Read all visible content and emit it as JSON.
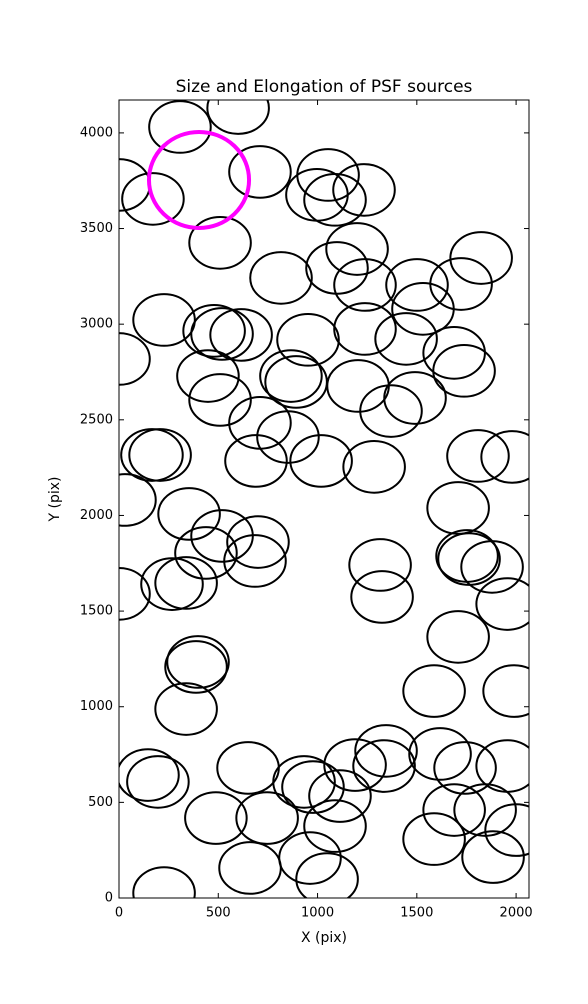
{
  "chart_data": {
    "type": "scatter",
    "title": "Size and Elongation of PSF sources",
    "x_label": "X (pix)",
    "y_label": "Y (pix)",
    "xlim": [
      0,
      2065
    ],
    "ylim": [
      0,
      4172
    ],
    "xticks": [
      0,
      500,
      1000,
      1500,
      2000
    ],
    "yticks": [
      0,
      500,
      1000,
      1500,
      2000,
      2500,
      3000,
      3500,
      4000
    ],
    "series": [
      {
        "color": "#000000",
        "width": 310,
        "height": 270,
        "x": [
          307,
          600,
          0,
          171,
          710,
          509,
          1053,
          997,
          1088,
          1234,
          1199,
          816,
          1098,
          1501,
          1824,
          1723,
          1239,
          1531,
          227,
          479,
          519,
          615,
          952,
          1239,
          1446,
          0,
          1688,
          1738,
          448,
          866,
          892,
          1204,
          509,
          1491,
          1370,
          710,
          851,
          166,
          207,
          690,
          1018,
          1285,
          1808,
          1980,
          30,
          353,
          1708,
          519,
          700,
          438,
          685,
          1315,
          1753,
          1763,
          1879,
          267,
          338,
          0,
          1325,
          1955,
          1708,
          398,
          388,
          1587,
          1990,
          338,
          146,
          196,
          650,
          932,
          977,
          1189,
          1345,
          1335,
          1617,
          1743,
          1955,
          1113,
          488,
          746,
          1088,
          1688,
          1844,
          1587,
          2000,
          962,
          1884,
          660,
          1048,
          227
        ],
        "values": [
          4031,
          4130,
          3728,
          3655,
          3796,
          3425,
          3780,
          3676,
          3650,
          3702,
          3393,
          3242,
          3294,
          3205,
          3346,
          3210,
          3205,
          3080,
          3022,
          2965,
          2949,
          2944,
          2918,
          2975,
          2923,
          2818,
          2850,
          2756,
          2729,
          2729,
          2698,
          2677,
          2604,
          2614,
          2546,
          2484,
          2410,
          2316,
          2316,
          2285,
          2285,
          2254,
          2311,
          2306,
          2081,
          2008,
          2039,
          1893,
          1861,
          1804,
          1762,
          1741,
          1788,
          1772,
          1731,
          1641,
          1647,
          1590,
          1574,
          1537,
          1365,
          1234,
          1208,
          1082,
          1082,
          988,
          643,
          607,
          680,
          607,
          580,
          695,
          769,
          690,
          753,
          680,
          690,
          533,
          418,
          418,
          376,
          460,
          460,
          308,
          355,
          209,
          214,
          157,
          99,
          26
        ]
      },
      {
        "color": "#ff00ff",
        "width": 504,
        "height": 502,
        "x": [
          403
        ],
        "values": [
          3754
        ]
      }
    ]
  }
}
